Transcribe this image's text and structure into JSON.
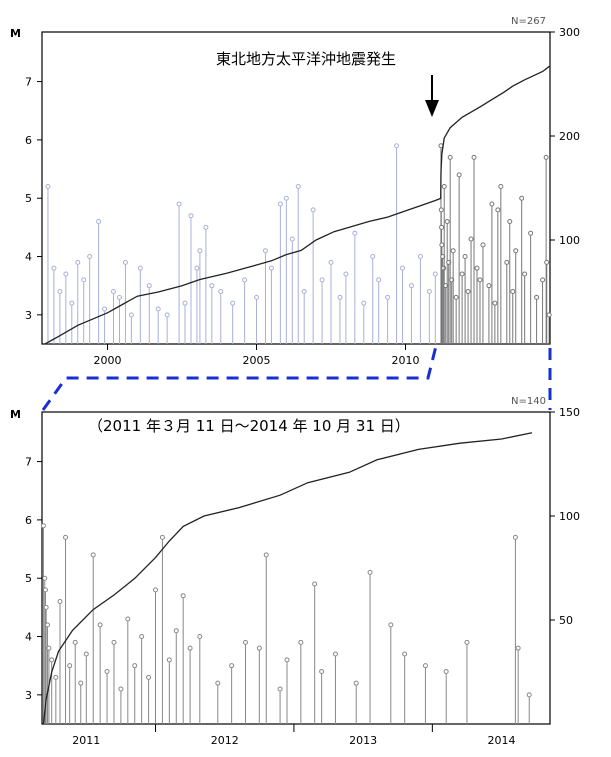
{
  "chart_data": [
    {
      "type": "stem+line",
      "ylabel": "M",
      "count_label": "N=267",
      "annotation": "東北地方太平洋沖地震発生",
      "x_ticks": [
        "2000",
        "2005",
        "2010"
      ],
      "y_left_ticks": [
        "3",
        "4",
        "5",
        "6",
        "7"
      ],
      "y_right_ticks": [
        "100",
        "200",
        "300"
      ],
      "xlim": [
        1997.8,
        2014.85
      ],
      "ylim_left": [
        2.5,
        7.85
      ],
      "ylim_right": [
        0,
        300
      ],
      "cumulative": [
        [
          1997.9,
          0
        ],
        [
          1998.4,
          8
        ],
        [
          1999.0,
          18
        ],
        [
          2000.0,
          30
        ],
        [
          2000.5,
          38
        ],
        [
          2001.0,
          46
        ],
        [
          2001.7,
          50
        ],
        [
          2002.5,
          56
        ],
        [
          2003.1,
          62
        ],
        [
          2004.0,
          68
        ],
        [
          2004.5,
          72
        ],
        [
          2005.0,
          76
        ],
        [
          2005.5,
          80
        ],
        [
          2006.0,
          86
        ],
        [
          2006.5,
          90
        ],
        [
          2007.0,
          100
        ],
        [
          2007.6,
          108
        ],
        [
          2008.2,
          113
        ],
        [
          2008.8,
          118
        ],
        [
          2009.4,
          122
        ],
        [
          2010.0,
          128
        ],
        [
          2010.5,
          133
        ],
        [
          2011.0,
          138
        ],
        [
          2011.18,
          140
        ],
        [
          2011.19,
          165
        ],
        [
          2011.22,
          182
        ],
        [
          2011.3,
          198
        ],
        [
          2011.5,
          208
        ],
        [
          2011.9,
          218
        ],
        [
          2012.5,
          228
        ],
        [
          2012.9,
          235
        ],
        [
          2013.3,
          242
        ],
        [
          2013.6,
          248
        ],
        [
          2014.0,
          254
        ],
        [
          2014.3,
          258
        ],
        [
          2014.6,
          262
        ],
        [
          2014.83,
          267
        ]
      ],
      "events_pre": [
        [
          1998.0,
          5.2
        ],
        [
          1998.2,
          3.8
        ],
        [
          1998.4,
          3.4
        ],
        [
          1998.6,
          3.7
        ],
        [
          1998.8,
          3.2
        ],
        [
          1999.0,
          3.9
        ],
        [
          1999.2,
          3.6
        ],
        [
          1999.4,
          4.0
        ],
        [
          1999.7,
          4.6
        ],
        [
          1999.9,
          3.1
        ],
        [
          2000.2,
          3.4
        ],
        [
          2000.4,
          3.3
        ],
        [
          2000.6,
          3.9
        ],
        [
          2000.8,
          3.0
        ],
        [
          2001.1,
          3.8
        ],
        [
          2001.4,
          3.5
        ],
        [
          2001.7,
          3.1
        ],
        [
          2002.0,
          3.0
        ],
        [
          2002.4,
          4.9
        ],
        [
          2002.6,
          3.2
        ],
        [
          2002.8,
          4.7
        ],
        [
          2003.0,
          3.8
        ],
        [
          2003.1,
          4.1
        ],
        [
          2003.3,
          4.5
        ],
        [
          2003.5,
          3.5
        ],
        [
          2003.8,
          3.4
        ],
        [
          2004.2,
          3.2
        ],
        [
          2004.6,
          3.6
        ],
        [
          2005.0,
          3.3
        ],
        [
          2005.3,
          4.1
        ],
        [
          2005.5,
          3.8
        ],
        [
          2005.8,
          4.9
        ],
        [
          2006.0,
          5.0
        ],
        [
          2006.2,
          4.3
        ],
        [
          2006.4,
          5.2
        ],
        [
          2006.6,
          3.4
        ],
        [
          2006.9,
          4.8
        ],
        [
          2007.2,
          3.6
        ],
        [
          2007.5,
          3.9
        ],
        [
          2007.8,
          3.3
        ],
        [
          2008.0,
          3.7
        ],
        [
          2008.3,
          4.4
        ],
        [
          2008.6,
          3.2
        ],
        [
          2008.9,
          4.0
        ],
        [
          2009.1,
          3.6
        ],
        [
          2009.4,
          3.3
        ],
        [
          2009.7,
          5.9
        ],
        [
          2009.9,
          3.8
        ],
        [
          2010.2,
          3.5
        ],
        [
          2010.5,
          4.0
        ],
        [
          2010.8,
          3.4
        ],
        [
          2011.0,
          3.7
        ]
      ],
      "events_post": [
        [
          2011.19,
          5.9
        ],
        [
          2011.2,
          4.8
        ],
        [
          2011.21,
          4.5
        ],
        [
          2011.22,
          4.2
        ],
        [
          2011.25,
          4.0
        ],
        [
          2011.28,
          3.8
        ],
        [
          2011.3,
          5.2
        ],
        [
          2011.35,
          3.5
        ],
        [
          2011.4,
          4.6
        ],
        [
          2011.45,
          3.9
        ],
        [
          2011.5,
          5.7
        ],
        [
          2011.55,
          3.6
        ],
        [
          2011.6,
          4.1
        ],
        [
          2011.7,
          3.3
        ],
        [
          2011.8,
          5.4
        ],
        [
          2011.9,
          3.7
        ],
        [
          2012.0,
          4.0
        ],
        [
          2012.1,
          3.4
        ],
        [
          2012.2,
          4.3
        ],
        [
          2012.3,
          5.7
        ],
        [
          2012.4,
          3.8
        ],
        [
          2012.5,
          3.6
        ],
        [
          2012.6,
          4.2
        ],
        [
          2012.8,
          3.5
        ],
        [
          2012.9,
          4.9
        ],
        [
          2013.0,
          3.2
        ],
        [
          2013.1,
          4.8
        ],
        [
          2013.2,
          5.2
        ],
        [
          2013.4,
          3.9
        ],
        [
          2013.5,
          4.6
        ],
        [
          2013.6,
          3.4
        ],
        [
          2013.7,
          4.1
        ],
        [
          2013.9,
          5.0
        ],
        [
          2014.0,
          3.7
        ],
        [
          2014.2,
          4.4
        ],
        [
          2014.4,
          3.3
        ],
        [
          2014.6,
          3.6
        ],
        [
          2014.72,
          5.7
        ],
        [
          2014.74,
          3.9
        ],
        [
          2014.82,
          3.0
        ]
      ]
    },
    {
      "type": "stem+line",
      "ylabel": "M",
      "count_label": "N=140",
      "period": "（2011 年３月 11 日～2014 年 10 月 31 日）",
      "x_ticks": [
        "2011",
        "2012",
        "2013",
        "2014"
      ],
      "y_left_ticks": [
        "3",
        "4",
        "5",
        "6",
        "7"
      ],
      "y_right_ticks": [
        "50",
        "100",
        "150"
      ],
      "xlim": [
        2011.18,
        2014.85
      ],
      "ylim_left": [
        2.5,
        7.85
      ],
      "ylim_right": [
        0,
        150
      ],
      "cumulative": [
        [
          2011.19,
          0
        ],
        [
          2011.21,
          12
        ],
        [
          2011.25,
          25
        ],
        [
          2011.3,
          35
        ],
        [
          2011.4,
          45
        ],
        [
          2011.55,
          55
        ],
        [
          2011.7,
          62
        ],
        [
          2011.85,
          70
        ],
        [
          2012.0,
          80
        ],
        [
          2012.1,
          88
        ],
        [
          2012.2,
          95
        ],
        [
          2012.35,
          100
        ],
        [
          2012.6,
          104
        ],
        [
          2012.9,
          110
        ],
        [
          2013.1,
          116
        ],
        [
          2013.4,
          121
        ],
        [
          2013.6,
          127
        ],
        [
          2013.9,
          132
        ],
        [
          2014.2,
          135
        ],
        [
          2014.5,
          137
        ],
        [
          2014.72,
          140
        ]
      ],
      "events": [
        [
          2011.19,
          5.9
        ],
        [
          2011.2,
          5.0
        ],
        [
          2011.205,
          4.8
        ],
        [
          2011.21,
          4.5
        ],
        [
          2011.22,
          4.2
        ],
        [
          2011.23,
          3.8
        ],
        [
          2011.25,
          3.6
        ],
        [
          2011.28,
          3.3
        ],
        [
          2011.31,
          4.6
        ],
        [
          2011.35,
          5.7
        ],
        [
          2011.38,
          3.5
        ],
        [
          2011.42,
          3.9
        ],
        [
          2011.46,
          3.2
        ],
        [
          2011.5,
          3.7
        ],
        [
          2011.55,
          5.4
        ],
        [
          2011.6,
          4.2
        ],
        [
          2011.65,
          3.4
        ],
        [
          2011.7,
          3.9
        ],
        [
          2011.75,
          3.1
        ],
        [
          2011.8,
          4.3
        ],
        [
          2011.85,
          3.5
        ],
        [
          2011.9,
          4.0
        ],
        [
          2011.95,
          3.3
        ],
        [
          2012.0,
          4.8
        ],
        [
          2012.05,
          5.7
        ],
        [
          2012.1,
          3.6
        ],
        [
          2012.15,
          4.1
        ],
        [
          2012.2,
          4.7
        ],
        [
          2012.25,
          3.8
        ],
        [
          2012.32,
          4.0
        ],
        [
          2012.45,
          3.2
        ],
        [
          2012.55,
          3.5
        ],
        [
          2012.65,
          3.9
        ],
        [
          2012.75,
          3.8
        ],
        [
          2012.8,
          5.4
        ],
        [
          2012.9,
          3.1
        ],
        [
          2012.95,
          3.6
        ],
        [
          2013.05,
          3.9
        ],
        [
          2013.15,
          4.9
        ],
        [
          2013.2,
          3.4
        ],
        [
          2013.3,
          3.7
        ],
        [
          2013.45,
          3.2
        ],
        [
          2013.55,
          5.1
        ],
        [
          2013.7,
          4.2
        ],
        [
          2013.8,
          3.7
        ],
        [
          2013.95,
          3.5
        ],
        [
          2014.1,
          3.4
        ],
        [
          2014.25,
          3.9
        ],
        [
          2014.6,
          5.7
        ],
        [
          2014.62,
          3.8
        ],
        [
          2014.7,
          3.0
        ]
      ]
    }
  ]
}
